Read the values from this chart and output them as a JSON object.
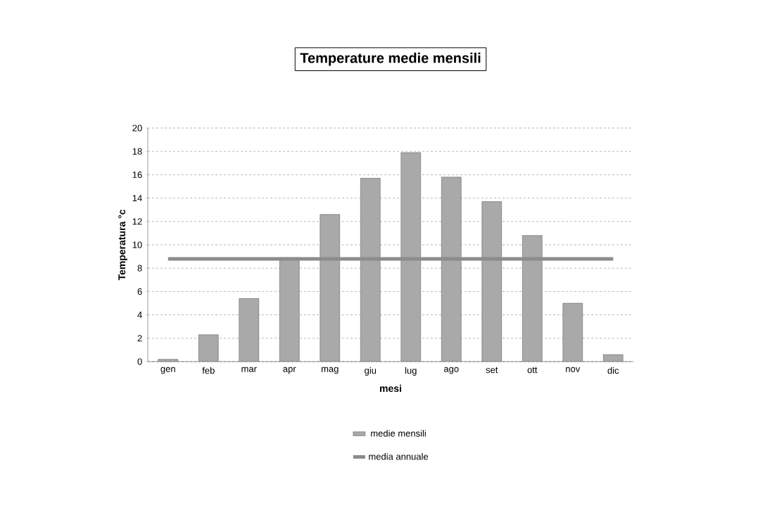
{
  "chart_data": {
    "type": "bar",
    "title": "Temperature medie mensili",
    "xlabel": "mesi",
    "ylabel": "Temperatura °c",
    "categories": [
      "gen",
      "feb",
      "mar",
      "apr",
      "mag",
      "giu",
      "lug",
      "ago",
      "set",
      "ott",
      "nov",
      "dic"
    ],
    "series": [
      {
        "name": "medie mensili",
        "color": "#a9a9a9",
        "values": [
          0.2,
          2.3,
          5.4,
          8.9,
          12.6,
          15.7,
          17.9,
          15.8,
          13.7,
          10.8,
          5.0,
          0.6
        ]
      },
      {
        "name": "media annuale",
        "type": "line",
        "color": "#8c8c8c",
        "values": [
          8.8,
          8.8,
          8.8,
          8.8,
          8.8,
          8.8,
          8.8,
          8.8,
          8.8,
          8.8,
          8.8,
          8.8
        ]
      }
    ],
    "ylim": [
      0,
      20
    ],
    "yticks": [
      0,
      2,
      4,
      6,
      8,
      10,
      12,
      14,
      16,
      18,
      20
    ],
    "grid": "y",
    "legend": "bottom"
  }
}
